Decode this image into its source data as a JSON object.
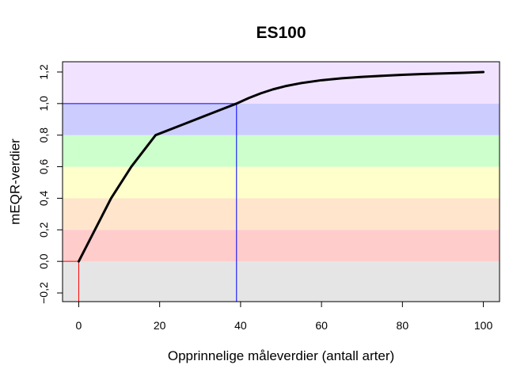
{
  "chart_data": {
    "type": "line",
    "title": "ES100",
    "xlabel": "Opprinnelige måleverdier (antall arter)",
    "ylabel": "mEQR-verdier",
    "xlim": [
      -4,
      104
    ],
    "ylim": [
      -0.255,
      1.265
    ],
    "x_ticks": [
      0,
      20,
      40,
      60,
      80,
      100
    ],
    "x_tick_labels": [
      "0",
      "20",
      "40",
      "60",
      "80",
      "100"
    ],
    "y_ticks": [
      -0.2,
      0.0,
      0.2,
      0.4,
      0.6,
      0.8,
      1.0,
      1.2
    ],
    "y_tick_labels": [
      "−0,2",
      "0,0",
      "0,2",
      "0,4",
      "0,6",
      "0,8",
      "1,0",
      "1,2"
    ],
    "grid": false,
    "bands": [
      {
        "name": "grey",
        "from": -0.255,
        "to": 0.0,
        "color": "#E5E5E5"
      },
      {
        "name": "red",
        "from": 0.0,
        "to": 0.2,
        "color": "#FFCCCC"
      },
      {
        "name": "orange",
        "from": 0.2,
        "to": 0.4,
        "color": "#FFE5CC"
      },
      {
        "name": "yellow",
        "from": 0.4,
        "to": 0.6,
        "color": "#FFFFCC"
      },
      {
        "name": "green",
        "from": 0.6,
        "to": 0.8,
        "color": "#CCFFCC"
      },
      {
        "name": "blue",
        "from": 0.8,
        "to": 1.0,
        "color": "#CCCCFF"
      },
      {
        "name": "violet",
        "from": 1.0,
        "to": 1.265,
        "color": "#F1E3FF"
      }
    ],
    "series": [
      {
        "color": "#000000",
        "x": [
          0,
          8,
          13,
          19,
          26,
          33,
          39,
          42,
          45,
          48,
          51,
          55,
          60,
          65,
          70,
          75,
          80,
          85,
          90,
          95,
          100
        ],
        "y": [
          0.0,
          0.4,
          0.6,
          0.8,
          0.87,
          0.94,
          1.0,
          1.035,
          1.065,
          1.09,
          1.11,
          1.13,
          1.148,
          1.16,
          1.169,
          1.176,
          1.182,
          1.187,
          1.191,
          1.195,
          1.2
        ]
      }
    ],
    "reference_lines": [
      {
        "color": "#FF0000",
        "points": [
          [
            0,
            -0.255
          ],
          [
            0,
            0.0
          ],
          [
            -4,
            0.0
          ]
        ]
      },
      {
        "color": "#0000FF",
        "points": [
          [
            39,
            -0.255
          ],
          [
            39,
            1.0
          ],
          [
            -4,
            1.0
          ]
        ]
      }
    ]
  }
}
